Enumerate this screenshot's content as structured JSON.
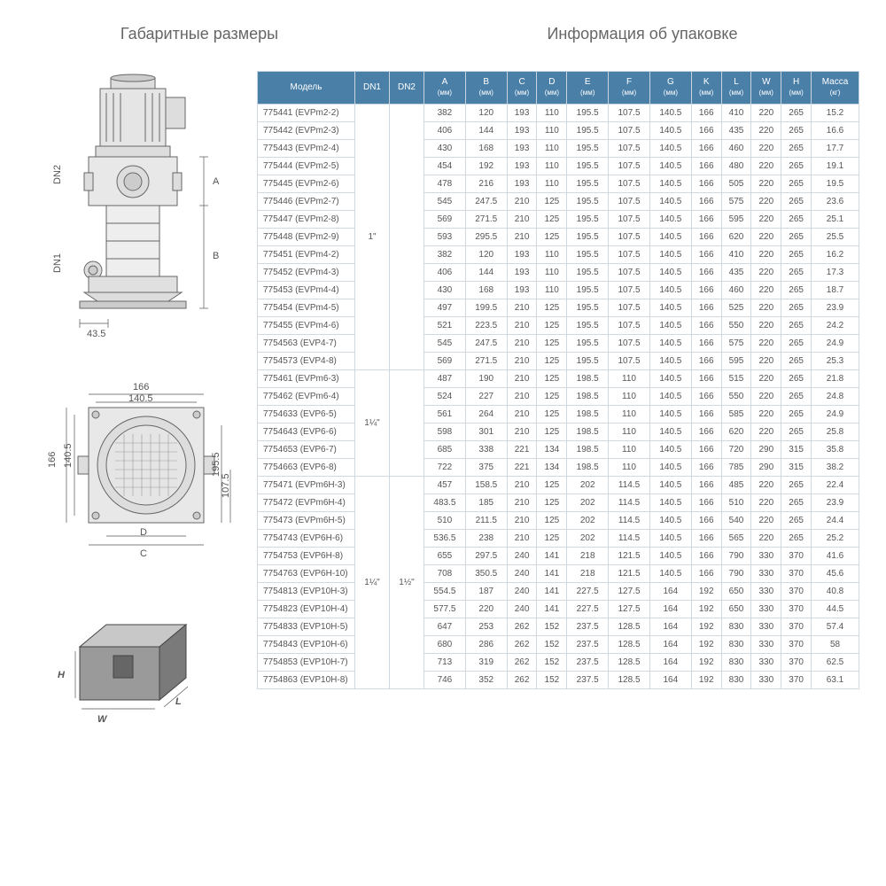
{
  "titles": {
    "left": "Габаритные размеры",
    "right": "Информация об упаковке"
  },
  "colors": {
    "header_bg": "#4a7fa8",
    "header_text": "#ffffff",
    "cell_border": "#d0d8e0",
    "text": "#555555",
    "diagram_stroke": "#666666",
    "diagram_fill": "#e8e8e8"
  },
  "table": {
    "columns": [
      {
        "label": "Модель",
        "sub": ""
      },
      {
        "label": "DN1",
        "sub": ""
      },
      {
        "label": "DN2",
        "sub": ""
      },
      {
        "label": "A",
        "sub": "(мм)"
      },
      {
        "label": "B",
        "sub": "(мм)"
      },
      {
        "label": "C",
        "sub": "(мм)"
      },
      {
        "label": "D",
        "sub": "(мм)"
      },
      {
        "label": "E",
        "sub": "(мм)"
      },
      {
        "label": "F",
        "sub": "(мм)"
      },
      {
        "label": "G",
        "sub": "(мм)"
      },
      {
        "label": "K",
        "sub": "(мм)"
      },
      {
        "label": "L",
        "sub": "(мм)"
      },
      {
        "label": "W",
        "sub": "(мм)"
      },
      {
        "label": "H",
        "sub": "(мм)"
      },
      {
        "label": "Масса",
        "sub": "(кг)"
      }
    ],
    "groups": [
      {
        "dn1": "1\"",
        "dn2": "",
        "rows": [
          {
            "model": "775441 (EVPm2-2)",
            "a": "382",
            "b": "120",
            "c": "193",
            "d": "110",
            "e": "195.5",
            "f": "107.5",
            "g": "140.5",
            "k": "166",
            "l": "410",
            "w": "220",
            "h": "265",
            "m": "15.2"
          },
          {
            "model": "775442 (EVPm2-3)",
            "a": "406",
            "b": "144",
            "c": "193",
            "d": "110",
            "e": "195.5",
            "f": "107.5",
            "g": "140.5",
            "k": "166",
            "l": "435",
            "w": "220",
            "h": "265",
            "m": "16.6"
          },
          {
            "model": "775443 (EVPm2-4)",
            "a": "430",
            "b": "168",
            "c": "193",
            "d": "110",
            "e": "195.5",
            "f": "107.5",
            "g": "140.5",
            "k": "166",
            "l": "460",
            "w": "220",
            "h": "265",
            "m": "17.7"
          },
          {
            "model": "775444 (EVPm2-5)",
            "a": "454",
            "b": "192",
            "c": "193",
            "d": "110",
            "e": "195.5",
            "f": "107.5",
            "g": "140.5",
            "k": "166",
            "l": "480",
            "w": "220",
            "h": "265",
            "m": "19.1"
          },
          {
            "model": "775445 (EVPm2-6)",
            "a": "478",
            "b": "216",
            "c": "193",
            "d": "110",
            "e": "195.5",
            "f": "107.5",
            "g": "140.5",
            "k": "166",
            "l": "505",
            "w": "220",
            "h": "265",
            "m": "19.5"
          },
          {
            "model": "775446 (EVPm2-7)",
            "a": "545",
            "b": "247.5",
            "c": "210",
            "d": "125",
            "e": "195.5",
            "f": "107.5",
            "g": "140.5",
            "k": "166",
            "l": "575",
            "w": "220",
            "h": "265",
            "m": "23.6"
          },
          {
            "model": "775447 (EVPm2-8)",
            "a": "569",
            "b": "271.5",
            "c": "210",
            "d": "125",
            "e": "195.5",
            "f": "107.5",
            "g": "140.5",
            "k": "166",
            "l": "595",
            "w": "220",
            "h": "265",
            "m": "25.1"
          },
          {
            "model": "775448 (EVPm2-9)",
            "a": "593",
            "b": "295.5",
            "c": "210",
            "d": "125",
            "e": "195.5",
            "f": "107.5",
            "g": "140.5",
            "k": "166",
            "l": "620",
            "w": "220",
            "h": "265",
            "m": "25.5"
          },
          {
            "model": "775451 (EVPm4-2)",
            "a": "382",
            "b": "120",
            "c": "193",
            "d": "110",
            "e": "195.5",
            "f": "107.5",
            "g": "140.5",
            "k": "166",
            "l": "410",
            "w": "220",
            "h": "265",
            "m": "16.2"
          },
          {
            "model": "775452 (EVPm4-3)",
            "a": "406",
            "b": "144",
            "c": "193",
            "d": "110",
            "e": "195.5",
            "f": "107.5",
            "g": "140.5",
            "k": "166",
            "l": "435",
            "w": "220",
            "h": "265",
            "m": "17.3"
          },
          {
            "model": "775453 (EVPm4-4)",
            "a": "430",
            "b": "168",
            "c": "193",
            "d": "110",
            "e": "195.5",
            "f": "107.5",
            "g": "140.5",
            "k": "166",
            "l": "460",
            "w": "220",
            "h": "265",
            "m": "18.7"
          },
          {
            "model": "775454 (EVPm4-5)",
            "a": "497",
            "b": "199.5",
            "c": "210",
            "d": "125",
            "e": "195.5",
            "f": "107.5",
            "g": "140.5",
            "k": "166",
            "l": "525",
            "w": "220",
            "h": "265",
            "m": "23.9"
          },
          {
            "model": "775455 (EVPm4-6)",
            "a": "521",
            "b": "223.5",
            "c": "210",
            "d": "125",
            "e": "195.5",
            "f": "107.5",
            "g": "140.5",
            "k": "166",
            "l": "550",
            "w": "220",
            "h": "265",
            "m": "24.2"
          },
          {
            "model": "7754563 (EVP4-7)",
            "a": "545",
            "b": "247.5",
            "c": "210",
            "d": "125",
            "e": "195.5",
            "f": "107.5",
            "g": "140.5",
            "k": "166",
            "l": "575",
            "w": "220",
            "h": "265",
            "m": "24.9"
          },
          {
            "model": "7754573 (EVP4-8)",
            "a": "569",
            "b": "271.5",
            "c": "210",
            "d": "125",
            "e": "195.5",
            "f": "107.5",
            "g": "140.5",
            "k": "166",
            "l": "595",
            "w": "220",
            "h": "265",
            "m": "25.3"
          }
        ]
      },
      {
        "dn1": "1¼\"",
        "dn2": "",
        "rows": [
          {
            "model": "775461 (EVPm6-3)",
            "a": "487",
            "b": "190",
            "c": "210",
            "d": "125",
            "e": "198.5",
            "f": "110",
            "g": "140.5",
            "k": "166",
            "l": "515",
            "w": "220",
            "h": "265",
            "m": "21.8"
          },
          {
            "model": "775462 (EVPm6-4)",
            "a": "524",
            "b": "227",
            "c": "210",
            "d": "125",
            "e": "198.5",
            "f": "110",
            "g": "140.5",
            "k": "166",
            "l": "550",
            "w": "220",
            "h": "265",
            "m": "24.8"
          },
          {
            "model": "7754633 (EVP6-5)",
            "a": "561",
            "b": "264",
            "c": "210",
            "d": "125",
            "e": "198.5",
            "f": "110",
            "g": "140.5",
            "k": "166",
            "l": "585",
            "w": "220",
            "h": "265",
            "m": "24.9"
          },
          {
            "model": "7754643 (EVP6-6)",
            "a": "598",
            "b": "301",
            "c": "210",
            "d": "125",
            "e": "198.5",
            "f": "110",
            "g": "140.5",
            "k": "166",
            "l": "620",
            "w": "220",
            "h": "265",
            "m": "25.8"
          },
          {
            "model": "7754653 (EVP6-7)",
            "a": "685",
            "b": "338",
            "c": "221",
            "d": "134",
            "e": "198.5",
            "f": "110",
            "g": "140.5",
            "k": "166",
            "l": "720",
            "w": "290",
            "h": "315",
            "m": "35.8"
          },
          {
            "model": "7754663 (EVP6-8)",
            "a": "722",
            "b": "375",
            "c": "221",
            "d": "134",
            "e": "198.5",
            "f": "110",
            "g": "140.5",
            "k": "166",
            "l": "785",
            "w": "290",
            "h": "315",
            "m": "38.2"
          }
        ]
      },
      {
        "dn1": "1¼\"",
        "dn2": "1½\"",
        "rows": [
          {
            "model": "775471 (EVPm6H-3)",
            "a": "457",
            "b": "158.5",
            "c": "210",
            "d": "125",
            "e": "202",
            "f": "114.5",
            "g": "140.5",
            "k": "166",
            "l": "485",
            "w": "220",
            "h": "265",
            "m": "22.4"
          },
          {
            "model": "775472 (EVPm6H-4)",
            "a": "483.5",
            "b": "185",
            "c": "210",
            "d": "125",
            "e": "202",
            "f": "114.5",
            "g": "140.5",
            "k": "166",
            "l": "510",
            "w": "220",
            "h": "265",
            "m": "23.9"
          },
          {
            "model": "775473 (EVPm6H-5)",
            "a": "510",
            "b": "211.5",
            "c": "210",
            "d": "125",
            "e": "202",
            "f": "114.5",
            "g": "140.5",
            "k": "166",
            "l": "540",
            "w": "220",
            "h": "265",
            "m": "24.4"
          },
          {
            "model": "7754743 (EVP6H-6)",
            "a": "536.5",
            "b": "238",
            "c": "210",
            "d": "125",
            "e": "202",
            "f": "114.5",
            "g": "140.5",
            "k": "166",
            "l": "565",
            "w": "220",
            "h": "265",
            "m": "25.2"
          },
          {
            "model": "7754753 (EVP6H-8)",
            "a": "655",
            "b": "297.5",
            "c": "240",
            "d": "141",
            "e": "218",
            "f": "121.5",
            "g": "140.5",
            "k": "166",
            "l": "790",
            "w": "330",
            "h": "370",
            "m": "41.6"
          },
          {
            "model": "7754763 (EVP6H-10)",
            "a": "708",
            "b": "350.5",
            "c": "240",
            "d": "141",
            "e": "218",
            "f": "121.5",
            "g": "140.5",
            "k": "166",
            "l": "790",
            "w": "330",
            "h": "370",
            "m": "45.6"
          },
          {
            "model": "7754813 (EVP10H-3)",
            "a": "554.5",
            "b": "187",
            "c": "240",
            "d": "141",
            "e": "227.5",
            "f": "127.5",
            "g": "164",
            "k": "192",
            "l": "650",
            "w": "330",
            "h": "370",
            "m": "40.8"
          },
          {
            "model": "7754823 (EVP10H-4)",
            "a": "577.5",
            "b": "220",
            "c": "240",
            "d": "141",
            "e": "227.5",
            "f": "127.5",
            "g": "164",
            "k": "192",
            "l": "650",
            "w": "330",
            "h": "370",
            "m": "44.5"
          },
          {
            "model": "7754833 (EVP10H-5)",
            "a": "647",
            "b": "253",
            "c": "262",
            "d": "152",
            "e": "237.5",
            "f": "128.5",
            "g": "164",
            "k": "192",
            "l": "830",
            "w": "330",
            "h": "370",
            "m": "57.4"
          },
          {
            "model": "7754843 (EVP10H-6)",
            "a": "680",
            "b": "286",
            "c": "262",
            "d": "152",
            "e": "237.5",
            "f": "128.5",
            "g": "164",
            "k": "192",
            "l": "830",
            "w": "330",
            "h": "370",
            "m": "58"
          },
          {
            "model": "7754853 (EVP10H-7)",
            "a": "713",
            "b": "319",
            "c": "262",
            "d": "152",
            "e": "237.5",
            "f": "128.5",
            "g": "164",
            "k": "192",
            "l": "830",
            "w": "330",
            "h": "370",
            "m": "62.5"
          },
          {
            "model": "7754863 (EVP10H-8)",
            "a": "746",
            "b": "352",
            "c": "262",
            "d": "152",
            "e": "237.5",
            "f": "128.5",
            "g": "164",
            "k": "192",
            "l": "830",
            "w": "330",
            "h": "370",
            "m": "63.1"
          }
        ]
      }
    ]
  },
  "diagram": {
    "side": {
      "dn1": "DN1",
      "dn2": "DN2",
      "a": "A",
      "b": "B",
      "base": "43.5"
    },
    "top": {
      "k": "166",
      "g": "140.5",
      "e": "195.5",
      "f": "107.5",
      "c": "C",
      "d": "D"
    },
    "box": {
      "h": "H",
      "w": "W",
      "l": "L"
    }
  }
}
